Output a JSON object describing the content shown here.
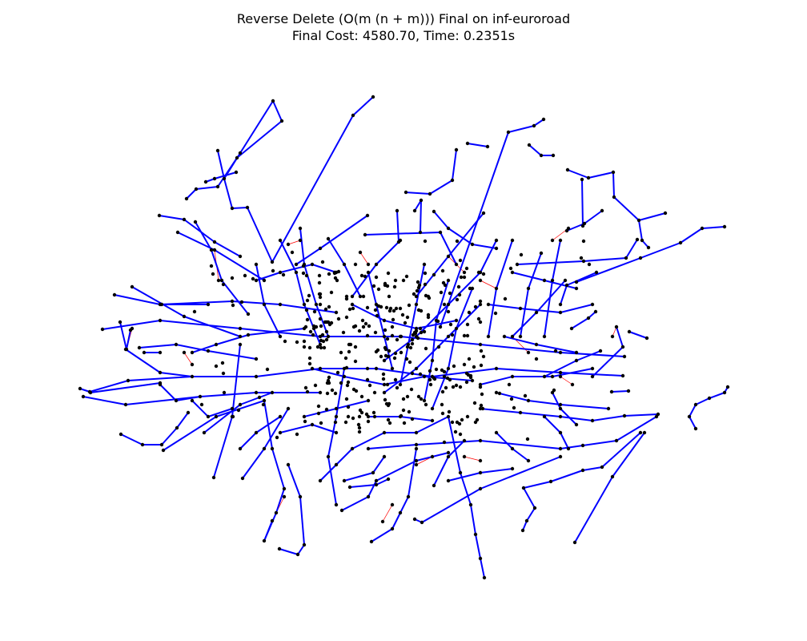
{
  "figure": {
    "title": "Reverse Delete (O(m (n + m))) Final on inf-euroroad",
    "subtitle": "Final Cost: 4580.70, Time: 0.2351s"
  },
  "colors": {
    "tree_edge": "#0000ff",
    "removed_edge": "#ff0000",
    "node": "#000000",
    "background": "#ffffff"
  },
  "legend": {
    "tree_edge": "blue edges — edges kept by Reverse Delete (final spanning structure)",
    "removed_edge": "thin red edges — deleted edges"
  }
}
